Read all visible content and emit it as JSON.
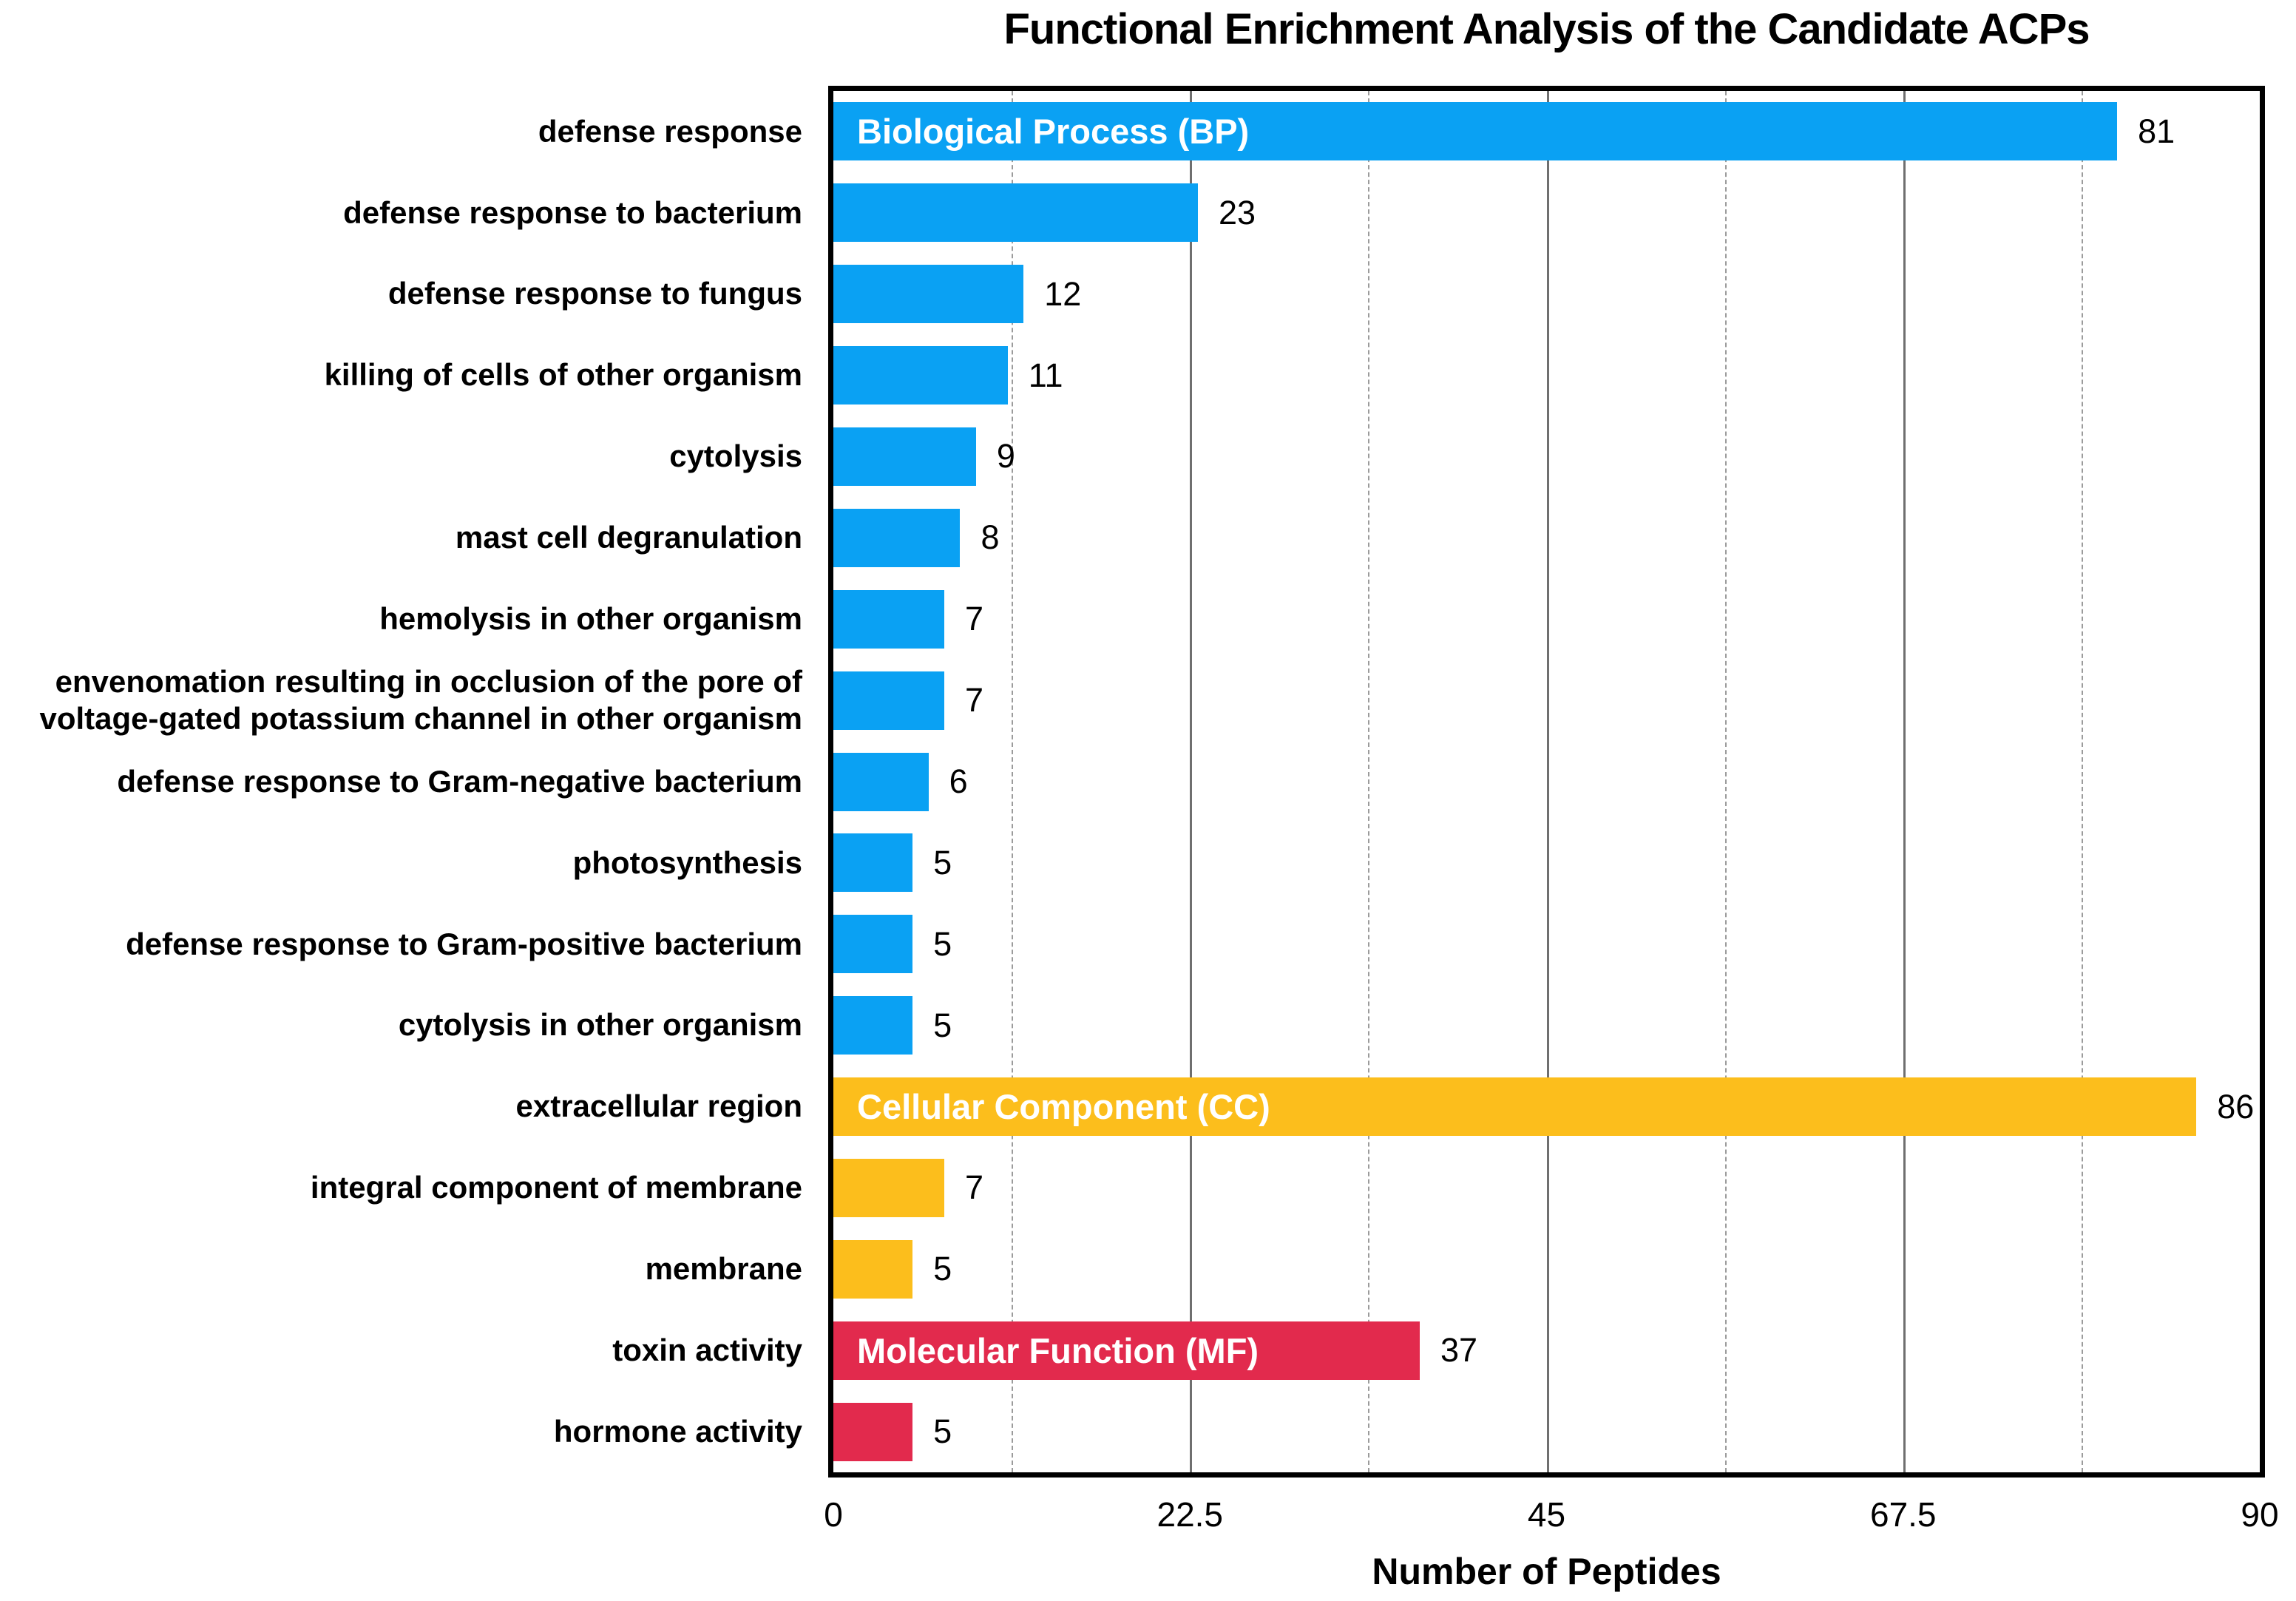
{
  "chart_data": {
    "type": "bar",
    "orientation": "horizontal",
    "title": "Functional Enrichment Analysis of the Candidate ACPs",
    "xlabel": "Number of Peptides",
    "xlim": [
      0,
      90
    ],
    "x_major_ticks": [
      0,
      22.5,
      45,
      67.5,
      90
    ],
    "x_minor_gridlines": [
      11.25,
      33.75,
      56.25,
      78.75
    ],
    "grid": "vertical (solid major, dashed minor)",
    "legend_position": "in-bar group labels",
    "group_colors": {
      "BP": "#0AA1F3",
      "CC": "#FCBE1C",
      "MF": "#E22A4D"
    },
    "groups": [
      {
        "id": "BP",
        "label": "Biological Process (BP)"
      },
      {
        "id": "CC",
        "label": "Cellular Component (CC)"
      },
      {
        "id": "MF",
        "label": "Molecular Function (MF)"
      }
    ],
    "bars": [
      {
        "category": "defense response",
        "value": 81,
        "group": "BP",
        "inbar_label": "Biological Process (BP)"
      },
      {
        "category": "defense response to bacterium",
        "value": 23,
        "group": "BP"
      },
      {
        "category": "defense response to fungus",
        "value": 12,
        "group": "BP"
      },
      {
        "category": "killing of cells of other organism",
        "value": 11,
        "group": "BP"
      },
      {
        "category": "cytolysis",
        "value": 9,
        "group": "BP"
      },
      {
        "category": "mast cell degranulation",
        "value": 8,
        "group": "BP"
      },
      {
        "category": "hemolysis in other organism",
        "value": 7,
        "group": "BP"
      },
      {
        "category": "envenomation resulting in occlusion of the pore of voltage-gated potassium channel in other organism",
        "value": 7,
        "group": "BP"
      },
      {
        "category": "defense response to Gram-negative bacterium",
        "value": 6,
        "group": "BP"
      },
      {
        "category": "photosynthesis",
        "value": 5,
        "group": "BP"
      },
      {
        "category": "defense response to Gram-positive bacterium",
        "value": 5,
        "group": "BP"
      },
      {
        "category": "cytolysis in other organism",
        "value": 5,
        "group": "BP"
      },
      {
        "category": "extracellular region",
        "value": 86,
        "group": "CC",
        "inbar_label": "Cellular Component (CC)"
      },
      {
        "category": "integral component of membrane",
        "value": 7,
        "group": "CC"
      },
      {
        "category": "membrane",
        "value": 5,
        "group": "CC"
      },
      {
        "category": "toxin activity",
        "value": 37,
        "group": "MF",
        "inbar_label": "Molecular Function (MF)"
      },
      {
        "category": "hormone activity",
        "value": 5,
        "group": "MF"
      }
    ]
  }
}
